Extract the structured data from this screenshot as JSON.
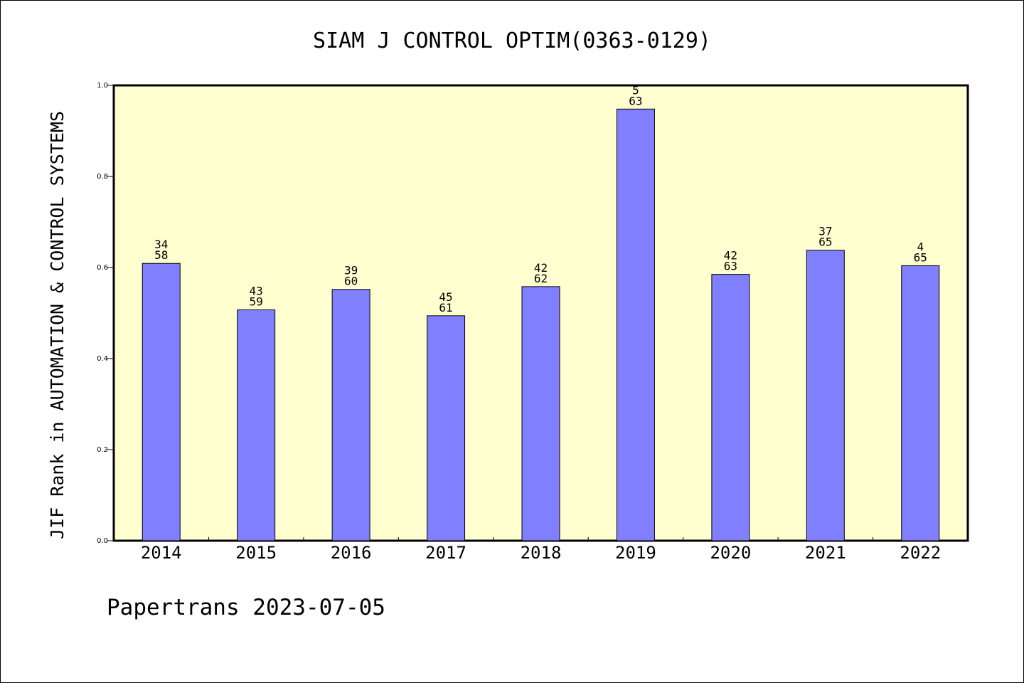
{
  "title": "SIAM J CONTROL OPTIM(0363-0129)",
  "footer": "Papertrans 2023-07-05",
  "colors": {
    "plot_background": "#ffffd0",
    "bar_fill": "#8080ff",
    "bar_stroke": "#000000"
  },
  "chart_data": {
    "type": "bar",
    "title": "SIAM J CONTROL OPTIM(0363-0129)",
    "xlabel": "",
    "ylabel": "JIF Rank in AUTOMATION & CONTROL SYSTEMS",
    "ylim": [
      0,
      1.0
    ],
    "yticks": [
      "0.0",
      "0.2",
      "0.4",
      "0.6",
      "0.8",
      "1.0"
    ],
    "grid": false,
    "categories": [
      "2014",
      "2015",
      "2016",
      "2017",
      "2018",
      "2019",
      "2020",
      "2021",
      "2022"
    ],
    "values": [
      0.609,
      0.507,
      0.552,
      0.494,
      0.558,
      0.948,
      0.585,
      0.638,
      0.604
    ],
    "labels": [
      [
        "34",
        "58"
      ],
      [
        "43",
        "59"
      ],
      [
        "39",
        "60"
      ],
      [
        "45",
        "61"
      ],
      [
        "42",
        "62"
      ],
      [
        "5",
        "63"
      ],
      [
        "42",
        "63"
      ],
      [
        "37",
        "65"
      ],
      [
        "4",
        "65"
      ]
    ]
  }
}
